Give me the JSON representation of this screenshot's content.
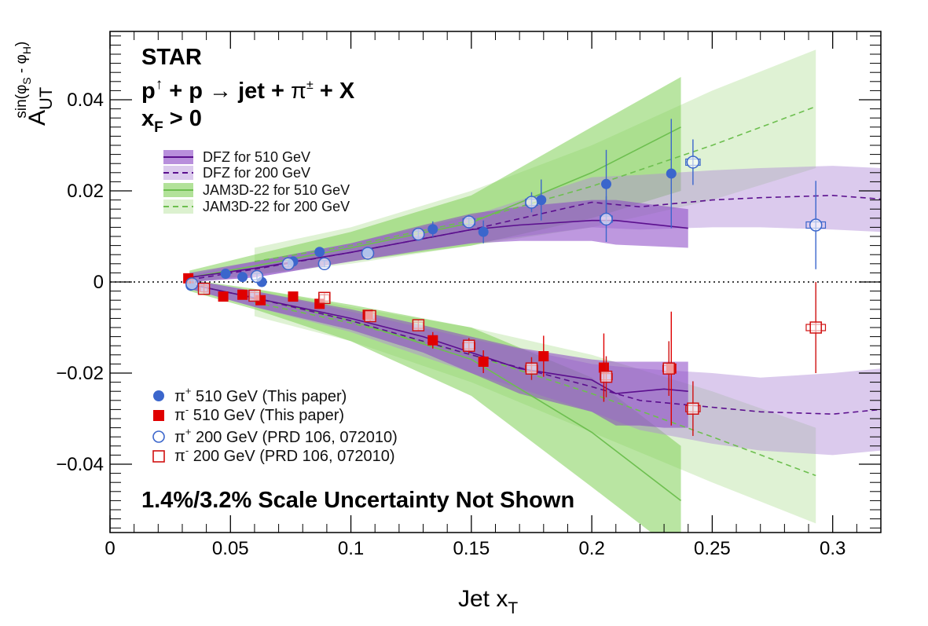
{
  "chart_data": {
    "type": "scatter",
    "xlabel": {
      "main": "Jet x",
      "sub": "T"
    },
    "ylabel": {
      "main": "A",
      "sub": "UT",
      "sup": "sin(φ",
      "sup_sub1": "S",
      "sup_mid": " - φ",
      "sup_sub2": "H",
      "sup_end": ")"
    },
    "xlim": [
      0,
      0.32
    ],
    "ylim": [
      -0.055,
      0.055
    ],
    "xticks": [
      {
        "value": 0,
        "label": "0"
      },
      {
        "value": 0.05,
        "label": "0.05"
      },
      {
        "value": 0.1,
        "label": "0.1"
      },
      {
        "value": 0.15,
        "label": "0.15"
      },
      {
        "value": 0.2,
        "label": "0.2"
      },
      {
        "value": 0.25,
        "label": "0.25"
      },
      {
        "value": 0.3,
        "label": "0.3"
      }
    ],
    "yticks": [
      {
        "value": 0.04,
        "label": "0.04"
      },
      {
        "value": 0.02,
        "label": "0.02"
      },
      {
        "value": 0,
        "label": "0"
      },
      {
        "value": -0.02,
        "label": "−0.02"
      },
      {
        "value": -0.04,
        "label": "−0.04"
      }
    ],
    "annotations": {
      "experiment": "STAR",
      "reaction": {
        "p1": "p",
        "arrow_sup": "↑",
        "rest": " + p ",
        "arrow": "→",
        "jet": " jet + ",
        "pi": "π",
        "pi_sup": "±",
        "tail": " + X"
      },
      "kinematic": {
        "x": "x",
        "x_sub": "F",
        "cond": " > 0"
      },
      "scale_note": "1.4%/3.2% Scale Uncertainty Not Shown"
    },
    "theory": [
      {
        "name": "DFZ for 510 GeV",
        "color": "#5b0f8e",
        "band_color": "#8844c4",
        "band_opacity": 0.55,
        "dash": "",
        "upper": {
          "x": [
            0.033,
            0.06,
            0.1,
            0.13,
            0.15,
            0.17,
            0.2,
            0.21,
            0.24
          ],
          "center": [
            0.001,
            0.003,
            0.0065,
            0.0095,
            0.0115,
            0.0125,
            0.0135,
            0.0135,
            0.0118
          ],
          "lo": [
            0.0,
            0.001,
            0.0045,
            0.007,
            0.0085,
            0.009,
            0.009,
            0.0082,
            0.0075
          ],
          "hi": [
            0.002,
            0.0045,
            0.0085,
            0.0125,
            0.015,
            0.0165,
            0.018,
            0.018,
            0.016
          ]
        },
        "lower": {
          "x": [
            0.033,
            0.06,
            0.1,
            0.13,
            0.15,
            0.17,
            0.2,
            0.21,
            0.22,
            0.23,
            0.24
          ],
          "center": [
            -0.0005,
            -0.0035,
            -0.008,
            -0.012,
            -0.0155,
            -0.019,
            -0.0215,
            -0.0245,
            -0.024,
            -0.0235,
            -0.024
          ],
          "lo": [
            -0.0015,
            -0.0055,
            -0.0105,
            -0.0155,
            -0.02,
            -0.0245,
            -0.0285,
            -0.0315,
            -0.0315,
            -0.032,
            -0.032
          ],
          "hi": [
            0.0005,
            -0.002,
            -0.006,
            -0.0095,
            -0.012,
            -0.0145,
            -0.017,
            -0.0175,
            -0.0175,
            -0.0175,
            -0.0175
          ]
        }
      },
      {
        "name": "DFZ for 200 GeV",
        "color": "#5b0f8e",
        "band_color": "#b08ad6",
        "band_opacity": 0.45,
        "dash": "7,5",
        "upper": {
          "x": [
            0.033,
            0.06,
            0.1,
            0.15,
            0.2,
            0.22,
            0.25,
            0.27,
            0.3,
            0.32
          ],
          "center": [
            0.0005,
            0.0028,
            0.0065,
            0.0115,
            0.0175,
            0.0165,
            0.018,
            0.0185,
            0.019,
            0.0182
          ],
          "lo": [
            0.0,
            0.001,
            0.0045,
            0.0085,
            0.012,
            0.0115,
            0.012,
            0.012,
            0.0115,
            0.011
          ],
          "hi": [
            0.0015,
            0.0045,
            0.0085,
            0.0145,
            0.023,
            0.0235,
            0.0245,
            0.025,
            0.0255,
            0.025
          ]
        },
        "lower": {
          "x": [
            0.033,
            0.06,
            0.1,
            0.15,
            0.2,
            0.22,
            0.25,
            0.27,
            0.3,
            0.32
          ],
          "center": [
            -0.0005,
            -0.0035,
            -0.0085,
            -0.016,
            -0.023,
            -0.026,
            -0.0275,
            -0.0285,
            -0.029,
            -0.028
          ],
          "lo": [
            -0.0015,
            -0.0055,
            -0.011,
            -0.02,
            -0.0285,
            -0.0325,
            -0.0355,
            -0.037,
            -0.038,
            -0.037
          ],
          "hi": [
            0.0005,
            -0.002,
            -0.0065,
            -0.0125,
            -0.018,
            -0.019,
            -0.02,
            -0.021,
            -0.02,
            -0.019
          ]
        }
      },
      {
        "name": "JAM3D-22 for 510 GeV",
        "color": "#6dbf4f",
        "band_color": "#7fcf55",
        "band_opacity": 0.55,
        "dash": "",
        "upper": {
          "x": [
            0.033,
            0.06,
            0.1,
            0.15,
            0.2,
            0.237
          ],
          "center": [
            0.001,
            0.0035,
            0.0075,
            0.013,
            0.024,
            0.034
          ],
          "lo": [
            0.0,
            0.0015,
            0.0045,
            0.008,
            0.014,
            0.02
          ],
          "hi": [
            0.0025,
            0.006,
            0.011,
            0.019,
            0.034,
            0.045
          ]
        },
        "lower": {
          "x": [
            0.033,
            0.06,
            0.1,
            0.15,
            0.2,
            0.237
          ],
          "center": [
            -0.0005,
            -0.0035,
            -0.0085,
            -0.017,
            -0.033,
            -0.048
          ],
          "lo": [
            -0.002,
            -0.006,
            -0.013,
            -0.025,
            -0.045,
            -0.06
          ],
          "hi": [
            0.0005,
            -0.0015,
            -0.005,
            -0.01,
            -0.021,
            -0.036
          ]
        }
      },
      {
        "name": "JAM3D-22 for 200 GeV",
        "color": "#6dbf4f",
        "band_color": "#b9e39f",
        "band_opacity": 0.45,
        "dash": "7,5",
        "upper": {
          "x": [
            0.06,
            0.1,
            0.15,
            0.2,
            0.25,
            0.293
          ],
          "center": [
            0.0045,
            0.008,
            0.0135,
            0.021,
            0.03,
            0.0385
          ],
          "lo": [
            0.0015,
            0.004,
            0.008,
            0.012,
            0.018,
            0.025
          ],
          "hi": [
            0.0075,
            0.012,
            0.02,
            0.03,
            0.042,
            0.051
          ]
        },
        "lower": {
          "x": [
            0.06,
            0.1,
            0.15,
            0.2,
            0.25,
            0.293
          ],
          "center": [
            -0.0045,
            -0.009,
            -0.016,
            -0.0245,
            -0.034,
            -0.0425
          ],
          "lo": [
            -0.0075,
            -0.013,
            -0.022,
            -0.033,
            -0.044,
            -0.053
          ],
          "hi": [
            -0.0015,
            -0.0055,
            -0.01,
            -0.016,
            -0.024,
            -0.032
          ]
        }
      }
    ],
    "series": [
      {
        "name": "π+ 510 GeV (This paper)",
        "legend": {
          "pi": "π",
          "sup": "+",
          "text": " 510 GeV (This paper)"
        },
        "marker": "circle",
        "filled": true,
        "color": "#3b66cc",
        "points": [
          {
            "x": 0.0335,
            "y": -0.0008,
            "e": 0.0007
          },
          {
            "x": 0.048,
            "y": 0.0018,
            "e": 0.0004
          },
          {
            "x": 0.055,
            "y": 0.0011,
            "e": 0.0004
          },
          {
            "x": 0.063,
            "y": 0.0,
            "e": 0.0005
          },
          {
            "x": 0.076,
            "y": 0.0045,
            "e": 0.0005
          },
          {
            "x": 0.087,
            "y": 0.0066,
            "e": 0.0006
          },
          {
            "x": 0.107,
            "y": 0.0066,
            "e": 0.0008
          },
          {
            "x": 0.134,
            "y": 0.0116,
            "e": 0.0017
          },
          {
            "x": 0.155,
            "y": 0.011,
            "e": 0.0025
          },
          {
            "x": 0.179,
            "y": 0.018,
            "e": 0.0045
          },
          {
            "x": 0.206,
            "y": 0.0215,
            "e": 0.0075
          },
          {
            "x": 0.233,
            "y": 0.0238,
            "e": 0.012
          }
        ]
      },
      {
        "name": "π- 510 GeV (This paper)",
        "legend": {
          "pi": "π",
          "sup": "-",
          "text": " 510 GeV (This paper)"
        },
        "marker": "square",
        "filled": true,
        "color": "#e00000",
        "points": [
          {
            "x": 0.0325,
            "y": 0.0008,
            "e": 0.0007
          },
          {
            "x": 0.047,
            "y": -0.0032,
            "e": 0.0004
          },
          {
            "x": 0.055,
            "y": -0.0028,
            "e": 0.0004
          },
          {
            "x": 0.0625,
            "y": -0.004,
            "e": 0.0005
          },
          {
            "x": 0.076,
            "y": -0.0032,
            "e": 0.0005
          },
          {
            "x": 0.087,
            "y": -0.0048,
            "e": 0.0007
          },
          {
            "x": 0.107,
            "y": -0.0072,
            "e": 0.0009
          },
          {
            "x": 0.134,
            "y": -0.0128,
            "e": 0.0018
          },
          {
            "x": 0.155,
            "y": -0.0175,
            "e": 0.0025
          },
          {
            "x": 0.18,
            "y": -0.0163,
            "e": 0.0045
          },
          {
            "x": 0.205,
            "y": -0.0188,
            "e": 0.0075
          },
          {
            "x": 0.233,
            "y": -0.019,
            "e": 0.0125
          }
        ]
      },
      {
        "name": "π+ 200 GeV (PRD 106, 072010)",
        "legend": {
          "pi": "π",
          "sup": "+",
          "text": " 200 GeV (PRD 106, 072010)"
        },
        "marker": "circle",
        "filled": false,
        "color": "#3b66cc",
        "points": [
          {
            "x": 0.034,
            "y": -0.0004,
            "e": 0.001,
            "w": 0.003
          },
          {
            "x": 0.061,
            "y": 0.0012,
            "e": 0.0008,
            "w": 0.004
          },
          {
            "x": 0.074,
            "y": 0.004,
            "e": 0.0008,
            "w": 0.004
          },
          {
            "x": 0.089,
            "y": 0.004,
            "e": 0.0008,
            "w": 0.004
          },
          {
            "x": 0.107,
            "y": 0.0063,
            "e": 0.001,
            "w": 0.004
          },
          {
            "x": 0.128,
            "y": 0.0105,
            "e": 0.0012,
            "w": 0.004
          },
          {
            "x": 0.149,
            "y": 0.0132,
            "e": 0.0015,
            "w": 0.005
          },
          {
            "x": 0.175,
            "y": 0.0175,
            "e": 0.0022,
            "w": 0.005
          },
          {
            "x": 0.206,
            "y": 0.0138,
            "e": 0.005,
            "w": 0.005
          },
          {
            "x": 0.242,
            "y": 0.0263,
            "e": 0.005,
            "w": 0.006
          },
          {
            "x": 0.293,
            "y": 0.0125,
            "e": 0.0097,
            "w": 0.008
          }
        ]
      },
      {
        "name": "π- 200 GeV (PRD 106, 072010)",
        "legend": {
          "pi": "π",
          "sup": "-",
          "text": " 200 GeV (PRD 106, 072010)"
        },
        "marker": "square",
        "filled": false,
        "color": "#d01010",
        "points": [
          {
            "x": 0.039,
            "y": -0.0015,
            "e": 0.001,
            "w": 0.003
          },
          {
            "x": 0.06,
            "y": -0.003,
            "e": 0.001,
            "w": 0.004
          },
          {
            "x": 0.089,
            "y": -0.0035,
            "e": 0.001,
            "w": 0.004
          },
          {
            "x": 0.108,
            "y": -0.0075,
            "e": 0.0012,
            "w": 0.004
          },
          {
            "x": 0.128,
            "y": -0.0095,
            "e": 0.0013,
            "w": 0.004
          },
          {
            "x": 0.149,
            "y": -0.014,
            "e": 0.0017,
            "w": 0.005
          },
          {
            "x": 0.175,
            "y": -0.019,
            "e": 0.0025,
            "w": 0.005
          },
          {
            "x": 0.206,
            "y": -0.0208,
            "e": 0.0045,
            "w": 0.005
          },
          {
            "x": 0.232,
            "y": -0.019,
            "e": 0.006,
            "w": 0.005
          },
          {
            "x": 0.242,
            "y": -0.0278,
            "e": 0.006,
            "w": 0.006
          },
          {
            "x": 0.293,
            "y": -0.01,
            "e": 0.01,
            "w": 0.008
          }
        ]
      }
    ]
  }
}
